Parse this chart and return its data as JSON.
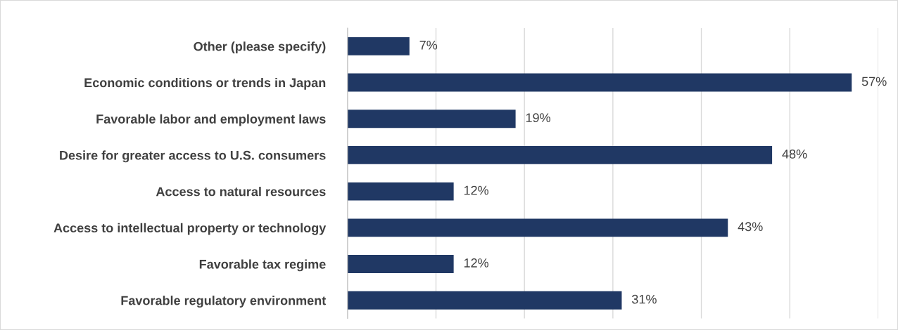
{
  "chart_data": {
    "type": "bar",
    "orientation": "horizontal",
    "categories": [
      "Other (please specify)",
      "Economic conditions or trends in Japan",
      "Favorable labor and employment laws",
      "Desire for greater access to U.S. consumers",
      "Access to natural resources",
      "Access to intellectual property or technology",
      "Favorable tax regime",
      "Favorable regulatory environment"
    ],
    "values": [
      7,
      57,
      19,
      48,
      12,
      43,
      12,
      31
    ],
    "value_labels": [
      "7%",
      "57%",
      "19%",
      "48%",
      "12%",
      "43%",
      "12%",
      "31%"
    ],
    "color": "#203864",
    "xlim": [
      0,
      60
    ],
    "xticks": [
      0,
      10,
      20,
      30,
      40,
      50,
      60
    ],
    "tick_labels": "y",
    "grid": "x"
  }
}
